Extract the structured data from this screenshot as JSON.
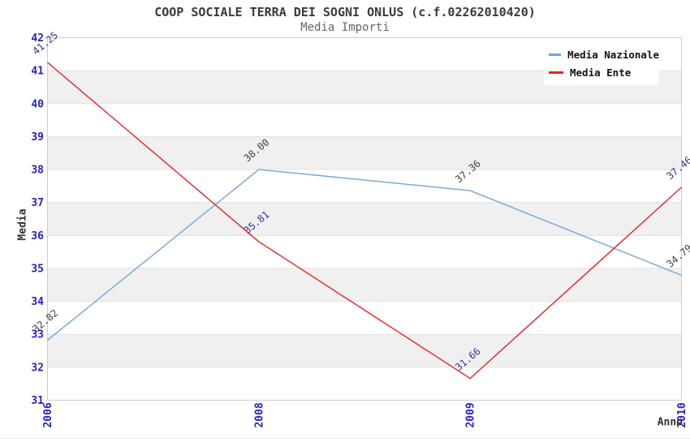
{
  "chart_data": {
    "type": "line",
    "title": "COOP SOCIALE TERRA DEI SOGNI ONLUS (c.f.02262010420)",
    "subtitle": "Media Importi",
    "xlabel": "Anno",
    "ylabel": "Media",
    "categories": [
      "2006",
      "2008",
      "2009",
      "2010"
    ],
    "series": [
      {
        "name": "Media Nazionale",
        "color": "#6da7dc",
        "label_color": "#3d3d3d",
        "values": [
          32.82,
          38.0,
          37.36,
          34.79
        ]
      },
      {
        "name": "Media Ente",
        "color": "#e62222",
        "label_color": "#333399",
        "values": [
          41.25,
          35.81,
          31.66,
          37.46
        ]
      }
    ],
    "ylim": [
      31,
      42
    ],
    "ytick_step": 1,
    "xtick_rotation": -90,
    "point_label_rotation": -40,
    "point_label_format": "2-decimals",
    "grid": "alternating-horizontal-bands",
    "legend_position": "top-right"
  },
  "colors": {
    "axis_tick": "#2222cc",
    "band": "#f0f0f0",
    "gridline": "#e2e2e2",
    "frame": "#cccccc",
    "title_text": "#3a3a3a",
    "subtitle_text": "#666666",
    "axis_title_text": "#333333",
    "legend_text": "#111111",
    "legend_bg": "#ffffff"
  }
}
